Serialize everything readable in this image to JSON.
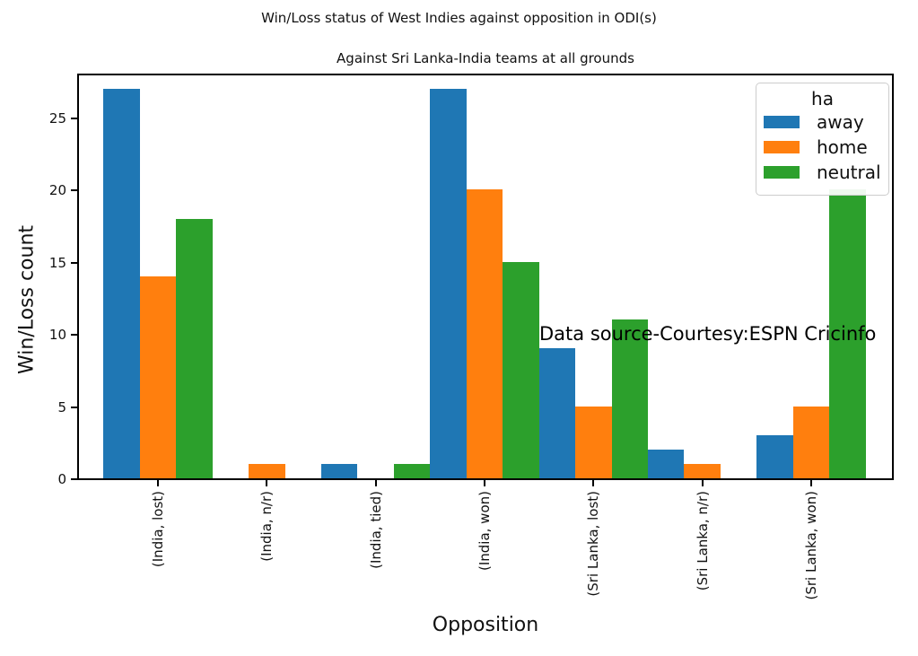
{
  "figure": {
    "suptitle": "Win/Loss status of West Indies against opposition in ODI(s)",
    "annotation": "Data source-Courtesy:ESPN Cricinfo"
  },
  "chart_data": {
    "type": "bar",
    "title": "Against Sri Lanka-India teams at all grounds",
    "suptitle": "Win/Loss status of West Indies against opposition in ODI(s)",
    "xlabel": "Opposition",
    "ylabel": "Win/Loss count",
    "categories": [
      "(India, lost)",
      "(India, n/r)",
      "(India, tied)",
      "(India, won)",
      "(Sri Lanka, lost)",
      "(Sri Lanka, n/r)",
      "(Sri Lanka, won)"
    ],
    "series": [
      {
        "name": "away",
        "color": "#1f77b4",
        "values": [
          27,
          0,
          1,
          27,
          9,
          2,
          3
        ]
      },
      {
        "name": "home",
        "color": "#ff7f0e",
        "values": [
          14,
          1,
          0,
          20,
          5,
          1,
          5
        ]
      },
      {
        "name": "neutral",
        "color": "#2ca02c",
        "values": [
          18,
          0,
          1,
          15,
          11,
          0,
          20
        ]
      }
    ],
    "yticks": [
      0,
      5,
      10,
      15,
      20,
      25
    ],
    "ylim": [
      0,
      28.2
    ],
    "grid": false,
    "legend_title": "ha",
    "legend_position": "upper right",
    "annotation": "Data source-Courtesy:ESPN Cricinfo"
  }
}
